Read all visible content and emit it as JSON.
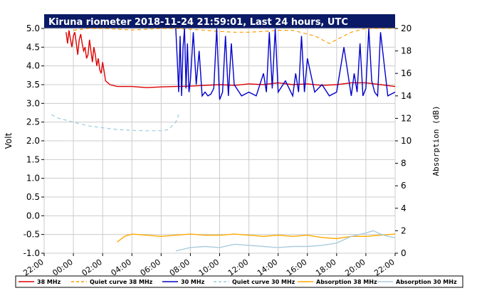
{
  "chart_data": {
    "type": "line",
    "title": "Kiruna riometer 2018-11-24 21:59:01, Last 24 hours, UTC",
    "ylabel": "Volt",
    "y2label": "Absorption (dB)",
    "ylim": [
      -1.0,
      5.0
    ],
    "y2lim": [
      0,
      20
    ],
    "yticks": [
      "5.0",
      "4.5",
      "4.0",
      "3.5",
      "3.0",
      "2.5",
      "2.0",
      "1.5",
      "1.0",
      "0.5",
      "0.0",
      "-0.5",
      "-1.0"
    ],
    "y2ticks": [
      "20",
      "18",
      "16",
      "14",
      "12",
      "10",
      "8",
      "6",
      "4",
      "2",
      "0"
    ],
    "xticks": [
      "22:00",
      "00:00",
      "02:00",
      "04:00",
      "06:00",
      "08:00",
      "10:00",
      "12:00",
      "14:00",
      "16:00",
      "18:00",
      "20:00",
      "22:00"
    ],
    "x_unit": "hours since 22:00",
    "grid": true,
    "legend_position": "bottom",
    "series": [
      {
        "name": "38 MHz",
        "axis": "left",
        "color": "#dd0000",
        "style": "solid",
        "x": [
          1.5,
          1.6,
          1.7,
          1.8,
          1.9,
          2.0,
          2.1,
          2.2,
          2.3,
          2.4,
          2.5,
          2.6,
          2.7,
          2.8,
          2.9,
          3.0,
          3.1,
          3.2,
          3.3,
          3.4,
          3.5,
          3.6,
          3.7,
          3.8,
          3.9,
          4.0,
          4.2,
          4.5,
          5,
          6,
          7,
          8,
          9,
          10,
          11,
          12,
          13,
          14,
          15,
          16,
          17,
          18,
          19,
          20,
          21,
          22,
          23,
          24
        ],
        "y": [
          4.9,
          4.6,
          4.95,
          4.7,
          4.5,
          4.8,
          4.9,
          4.6,
          4.3,
          4.7,
          4.85,
          4.6,
          4.4,
          4.5,
          4.2,
          4.3,
          4.7,
          4.4,
          4.1,
          4.5,
          4.3,
          4.0,
          4.2,
          3.9,
          3.8,
          4.1,
          3.6,
          3.5,
          3.45,
          3.45,
          3.42,
          3.44,
          3.45,
          3.46,
          3.48,
          3.5,
          3.48,
          3.52,
          3.5,
          3.55,
          3.5,
          3.52,
          3.48,
          3.5,
          3.55,
          3.55,
          3.5,
          3.45
        ]
      },
      {
        "name": "Quiet curve 38 MHz",
        "axis": "left",
        "color": "#ff9900",
        "style": "dashed",
        "x": [
          2.0,
          3,
          4,
          5,
          6,
          7,
          8,
          9,
          10,
          11,
          12,
          13,
          14,
          15,
          16,
          17,
          18,
          18.5,
          19,
          19.5,
          20,
          20.5,
          21,
          21.5,
          22,
          23,
          24
        ],
        "y": [
          4.95,
          5.0,
          5.0,
          4.98,
          4.96,
          4.98,
          5.0,
          5.0,
          4.98,
          4.95,
          4.92,
          4.9,
          4.9,
          4.92,
          4.95,
          4.95,
          4.85,
          4.8,
          4.7,
          4.6,
          4.7,
          4.8,
          4.9,
          4.95,
          5.0,
          5.0,
          5.0
        ]
      },
      {
        "name": "30 MHz",
        "axis": "left",
        "color": "#0000cc",
        "style": "solid",
        "x": [
          9,
          9.1,
          9.2,
          9.3,
          9.4,
          9.5,
          9.6,
          9.7,
          9.8,
          9.9,
          10,
          10.2,
          10.4,
          10.6,
          10.8,
          11,
          11.2,
          11.4,
          11.6,
          11.8,
          12,
          12.2,
          12.4,
          12.6,
          12.8,
          13,
          13.5,
          14,
          14.5,
          15,
          15.2,
          15.4,
          15.6,
          15.8,
          16,
          16.5,
          17,
          17.2,
          17.4,
          17.6,
          17.8,
          18,
          18.5,
          19,
          19.5,
          20,
          20.5,
          21,
          21.2,
          21.4,
          21.6,
          21.8,
          22,
          22.2,
          22.4,
          22.6,
          22.8,
          23,
          23.5,
          24
        ],
        "y": [
          5.0,
          4.2,
          3.3,
          4.8,
          3.2,
          4.5,
          5.0,
          3.4,
          4.6,
          3.3,
          3.6,
          4.9,
          3.5,
          4.4,
          3.2,
          3.3,
          3.2,
          3.25,
          3.4,
          5.0,
          3.1,
          3.3,
          4.8,
          3.2,
          4.6,
          3.5,
          3.2,
          3.3,
          3.2,
          3.8,
          3.3,
          4.9,
          3.4,
          5.0,
          3.3,
          3.6,
          3.2,
          3.8,
          3.3,
          4.8,
          3.3,
          4.2,
          3.3,
          3.5,
          3.2,
          3.3,
          4.5,
          3.2,
          3.8,
          3.3,
          4.6,
          3.2,
          3.4,
          5.0,
          3.6,
          3.3,
          3.2,
          4.9,
          3.2,
          3.3
        ]
      },
      {
        "name": "Quiet curve 30 MHz",
        "axis": "left",
        "color": "#99ccdd",
        "style": "dashed",
        "x": [
          0.5,
          1,
          1.5,
          2,
          2.5,
          3,
          4,
          5,
          6,
          7,
          8,
          8.5,
          9,
          9.2
        ],
        "y": [
          2.7,
          2.6,
          2.55,
          2.5,
          2.45,
          2.4,
          2.35,
          2.3,
          2.28,
          2.27,
          2.27,
          2.3,
          2.5,
          2.7
        ]
      },
      {
        "name": "Absorption 38 MHz",
        "axis": "right",
        "color": "#ffaa00",
        "style": "solid",
        "x": [
          5,
          5.5,
          6,
          7,
          8,
          9,
          10,
          11,
          12,
          13,
          14,
          15,
          16,
          17,
          18,
          19,
          20,
          21,
          22,
          23,
          24
        ],
        "y": [
          1.0,
          1.5,
          1.7,
          1.6,
          1.5,
          1.6,
          1.7,
          1.6,
          1.6,
          1.7,
          1.6,
          1.5,
          1.6,
          1.5,
          1.6,
          1.4,
          1.3,
          1.5,
          1.5,
          1.6,
          1.7
        ]
      },
      {
        "name": "Absorption 30 MHz",
        "axis": "right",
        "color": "#aaccdd",
        "style": "solid",
        "x": [
          9,
          10,
          11,
          12,
          13,
          14,
          15,
          16,
          17,
          18,
          19,
          20,
          21,
          22,
          22.5,
          23,
          23.5,
          24
        ],
        "y": [
          0.2,
          0.5,
          0.6,
          0.5,
          0.8,
          0.7,
          0.6,
          0.5,
          0.6,
          0.6,
          0.7,
          0.9,
          1.5,
          1.8,
          2.0,
          1.7,
          1.5,
          1.4
        ]
      }
    ]
  }
}
